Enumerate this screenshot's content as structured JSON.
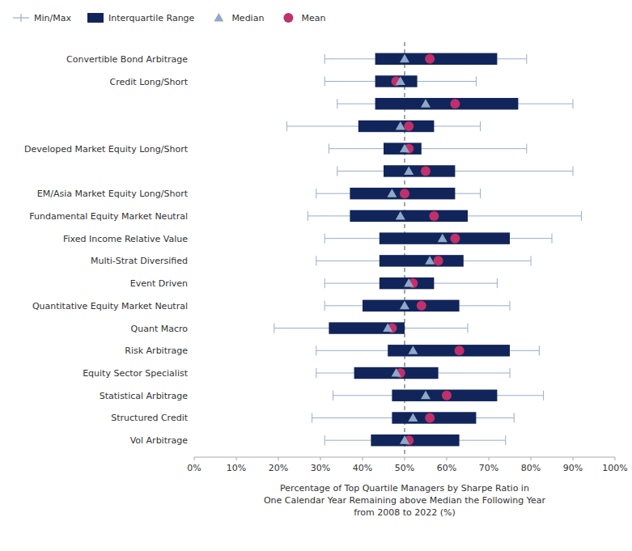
{
  "chart_data": {
    "type": "box",
    "orientation": "horizontal",
    "xlabel": "Percentage of Top Quartile Managers by Sharpe Ratio in\nOne Calendar Year Remaining above Median the Following Year\nfrom 2008 to 2022 (%)",
    "categories": [
      "Convertible Bond Arbitrage",
      "Credit Long/Short",
      null,
      null,
      "Developed Market Equity Long/Short",
      null,
      "EM/Asia Market Equity Long/Short",
      "Fundamental Equity Market Neutral",
      "Fixed Income Relative Value",
      "Multi-Strat Diversified",
      "Event Driven",
      "Quantitative Equity Market Neutral",
      "Quant Macro",
      "Risk Arbitrage",
      "Equity Sector Specialist",
      "Statistical Arbitrage",
      "Structured Credit",
      "Vol Arbitrage"
    ],
    "series": [
      {
        "name": "Min/Max",
        "color": "#9aadc8",
        "low": [
          0.31,
          0.31,
          0.34,
          0.22,
          0.32,
          0.34,
          0.29,
          0.27,
          0.31,
          0.29,
          0.31,
          0.31,
          0.19,
          0.29,
          0.29,
          0.33,
          0.28,
          0.31
        ],
        "high": [
          0.79,
          0.67,
          0.9,
          0.68,
          0.79,
          0.9,
          0.68,
          0.92,
          0.85,
          0.8,
          0.72,
          0.75,
          0.65,
          0.82,
          0.75,
          0.83,
          0.76,
          0.74
        ]
      },
      {
        "name": "Interquartile Range",
        "color": "#12255a",
        "low": [
          0.43,
          0.43,
          0.43,
          0.39,
          0.45,
          0.45,
          0.37,
          0.37,
          0.44,
          0.44,
          0.44,
          0.4,
          0.32,
          0.46,
          0.38,
          0.47,
          0.47,
          0.42
        ],
        "high": [
          0.72,
          0.53,
          0.77,
          0.57,
          0.54,
          0.62,
          0.62,
          0.65,
          0.75,
          0.64,
          0.57,
          0.63,
          0.5,
          0.75,
          0.58,
          0.72,
          0.67,
          0.63
        ]
      },
      {
        "name": "Median",
        "color": "#8fa9c9",
        "marker": "triangle",
        "values": [
          0.5,
          0.49,
          0.55,
          0.49,
          0.5,
          0.51,
          0.47,
          0.49,
          0.59,
          0.56,
          0.51,
          0.5,
          0.46,
          0.52,
          0.48,
          0.55,
          0.52,
          0.5
        ]
      },
      {
        "name": "Mean",
        "color": "#c0306a",
        "marker": "circle",
        "values": [
          0.56,
          0.48,
          0.62,
          0.51,
          0.51,
          0.55,
          0.5,
          0.57,
          0.62,
          0.58,
          0.52,
          0.54,
          0.47,
          0.63,
          0.49,
          0.6,
          0.56,
          0.51
        ]
      }
    ],
    "vline": 0.5,
    "xlim": [
      0.0,
      1.0
    ],
    "xticks": [
      {
        "value": 0.0,
        "label": "0%"
      },
      {
        "value": 0.1,
        "label": "10%"
      },
      {
        "value": 0.2,
        "label": "20%"
      },
      {
        "value": 0.3,
        "label": "30%"
      },
      {
        "value": 0.4,
        "label": "40%"
      },
      {
        "value": 0.5,
        "label": "50%"
      },
      {
        "value": 0.6,
        "label": "60%"
      },
      {
        "value": 0.7,
        "label": "70%"
      },
      {
        "value": 0.8,
        "label": "80%"
      },
      {
        "value": 0.9,
        "label": "90%"
      },
      {
        "value": 1.0,
        "label": "100%"
      }
    ],
    "grid": false,
    "legend": "upper left"
  }
}
